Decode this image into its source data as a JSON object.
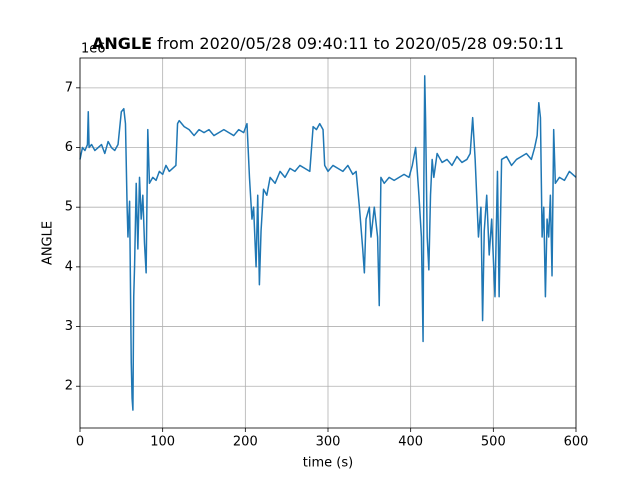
{
  "chart_data": {
    "type": "line",
    "title_bold": "ANGLE",
    "title_rest": "from 2020/05/28 09:40:11 to 2020/05/28 09:50:11",
    "x_label": "time (s)",
    "y_label": "ANGLE",
    "y_offset_label": "1e6",
    "xlim": [
      0,
      600
    ],
    "ylim": [
      1.3,
      7.5
    ],
    "xticks": [
      0,
      100,
      200,
      300,
      400,
      500,
      600
    ],
    "yticks": [
      2,
      3,
      4,
      5,
      6,
      7
    ],
    "grid": true,
    "series": [
      {
        "name": "ANGLE",
        "color": "#1f77b4",
        "x": [
          0,
          3,
          6,
          9,
          10,
          11,
          14,
          18,
          22,
          26,
          30,
          34,
          38,
          42,
          46,
          50,
          53,
          55,
          57,
          58,
          60,
          62,
          63,
          64,
          65,
          66,
          68,
          70,
          72,
          74,
          76,
          78,
          80,
          82,
          84,
          88,
          92,
          96,
          100,
          104,
          108,
          112,
          116,
          118,
          120,
          126,
          132,
          138,
          144,
          150,
          156,
          162,
          168,
          174,
          180,
          186,
          192,
          198,
          202,
          205,
          208,
          210,
          213,
          215,
          217,
          219,
          222,
          226,
          230,
          236,
          242,
          248,
          254,
          260,
          266,
          272,
          278,
          282,
          286,
          290,
          294,
          296,
          300,
          306,
          312,
          318,
          324,
          330,
          334,
          338,
          342,
          344,
          346,
          350,
          352,
          356,
          360,
          362,
          364,
          368,
          374,
          380,
          386,
          392,
          398,
          402,
          406,
          410,
          413,
          415,
          416,
          417,
          418,
          420,
          422,
          424,
          426,
          428,
          432,
          438,
          444,
          450,
          456,
          462,
          468,
          472,
          475,
          478,
          482,
          485,
          487,
          489,
          492,
          495,
          498,
          502,
          505,
          507,
          510,
          516,
          522,
          528,
          534,
          540,
          546,
          550,
          553,
          555,
          557,
          559,
          561,
          563,
          565,
          567,
          569,
          571,
          573,
          575,
          580,
          586,
          592,
          600
        ],
        "values": [
          5.8,
          6.0,
          5.95,
          6.05,
          6.6,
          6.0,
          6.05,
          5.95,
          6.0,
          6.05,
          5.9,
          6.1,
          6.0,
          5.95,
          6.05,
          6.6,
          6.65,
          6.4,
          5.0,
          4.5,
          5.1,
          2.4,
          1.8,
          1.6,
          3.5,
          4.0,
          5.4,
          4.3,
          5.5,
          4.8,
          5.2,
          4.4,
          3.9,
          6.3,
          5.4,
          5.5,
          5.45,
          5.6,
          5.55,
          5.7,
          5.6,
          5.65,
          5.7,
          6.4,
          6.45,
          6.35,
          6.3,
          6.2,
          6.3,
          6.25,
          6.3,
          6.2,
          6.25,
          6.3,
          6.25,
          6.2,
          6.3,
          6.25,
          6.4,
          5.5,
          4.8,
          5.0,
          4.0,
          5.2,
          3.7,
          4.6,
          5.3,
          5.2,
          5.5,
          5.4,
          5.6,
          5.5,
          5.65,
          5.6,
          5.7,
          5.65,
          5.6,
          6.35,
          6.3,
          6.4,
          6.3,
          5.7,
          5.6,
          5.7,
          5.65,
          5.6,
          5.7,
          5.55,
          5.6,
          5.0,
          4.3,
          3.9,
          4.8,
          5.0,
          4.5,
          5.0,
          4.5,
          3.35,
          5.5,
          5.4,
          5.5,
          5.45,
          5.5,
          5.55,
          5.5,
          5.7,
          6.0,
          5.2,
          4.5,
          2.75,
          5.5,
          7.2,
          6.5,
          4.5,
          3.95,
          5.2,
          5.8,
          5.5,
          5.9,
          5.75,
          5.8,
          5.7,
          5.85,
          5.75,
          5.8,
          5.9,
          6.5,
          5.8,
          4.5,
          5.0,
          3.1,
          4.6,
          5.2,
          4.2,
          4.8,
          3.5,
          5.6,
          3.5,
          5.8,
          5.85,
          5.7,
          5.8,
          5.85,
          5.9,
          5.8,
          6.0,
          6.2,
          6.75,
          6.5,
          4.5,
          5.0,
          3.5,
          4.8,
          4.5,
          5.2,
          3.85,
          6.3,
          5.4,
          5.5,
          5.45,
          5.6,
          5.5
        ]
      }
    ]
  }
}
